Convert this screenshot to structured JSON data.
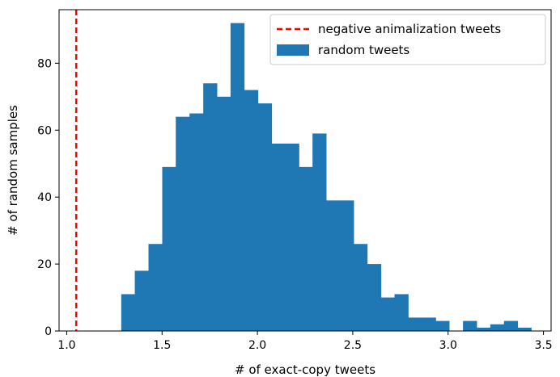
{
  "chart_data": {
    "type": "bar",
    "title": "",
    "xlabel": "# of exact-copy tweets",
    "ylabel": "# of random samples",
    "xlim": [
      0.96,
      3.54
    ],
    "ylim": [
      0,
      96
    ],
    "xticks": [
      "1.0",
      "1.5",
      "2.0",
      "2.5",
      "3.0",
      "3.5"
    ],
    "yticks": [
      "0",
      "20",
      "40",
      "60",
      "80"
    ],
    "grid": false,
    "legend_position": "top-right",
    "bin_width": 0.0717,
    "bins": [
      {
        "x": 1.286,
        "count": 11
      },
      {
        "x": 1.357,
        "count": 18
      },
      {
        "x": 1.429,
        "count": 26
      },
      {
        "x": 1.501,
        "count": 49
      },
      {
        "x": 1.572,
        "count": 64
      },
      {
        "x": 1.644,
        "count": 65
      },
      {
        "x": 1.716,
        "count": 74
      },
      {
        "x": 1.787,
        "count": 70
      },
      {
        "x": 1.859,
        "count": 92
      },
      {
        "x": 1.931,
        "count": 72
      },
      {
        "x": 2.003,
        "count": 68
      },
      {
        "x": 2.074,
        "count": 56
      },
      {
        "x": 2.146,
        "count": 56
      },
      {
        "x": 2.218,
        "count": 49
      },
      {
        "x": 2.289,
        "count": 59
      },
      {
        "x": 2.361,
        "count": 39
      },
      {
        "x": 2.433,
        "count": 39
      },
      {
        "x": 2.504,
        "count": 26
      },
      {
        "x": 2.576,
        "count": 20
      },
      {
        "x": 2.648,
        "count": 10
      },
      {
        "x": 2.719,
        "count": 11
      },
      {
        "x": 2.791,
        "count": 4
      },
      {
        "x": 2.863,
        "count": 4
      },
      {
        "x": 2.934,
        "count": 3
      },
      {
        "x": 3.006,
        "count": 0
      },
      {
        "x": 3.078,
        "count": 3
      },
      {
        "x": 3.149,
        "count": 1
      },
      {
        "x": 3.221,
        "count": 2
      },
      {
        "x": 3.293,
        "count": 3
      },
      {
        "x": 3.364,
        "count": 1
      }
    ],
    "reference_line": {
      "x": 1.05,
      "name": "negative animalization tweets",
      "color": "#ff0000",
      "style": "dashed"
    },
    "series": [
      {
        "name": "random tweets",
        "color": "#1f77b4"
      }
    ]
  }
}
